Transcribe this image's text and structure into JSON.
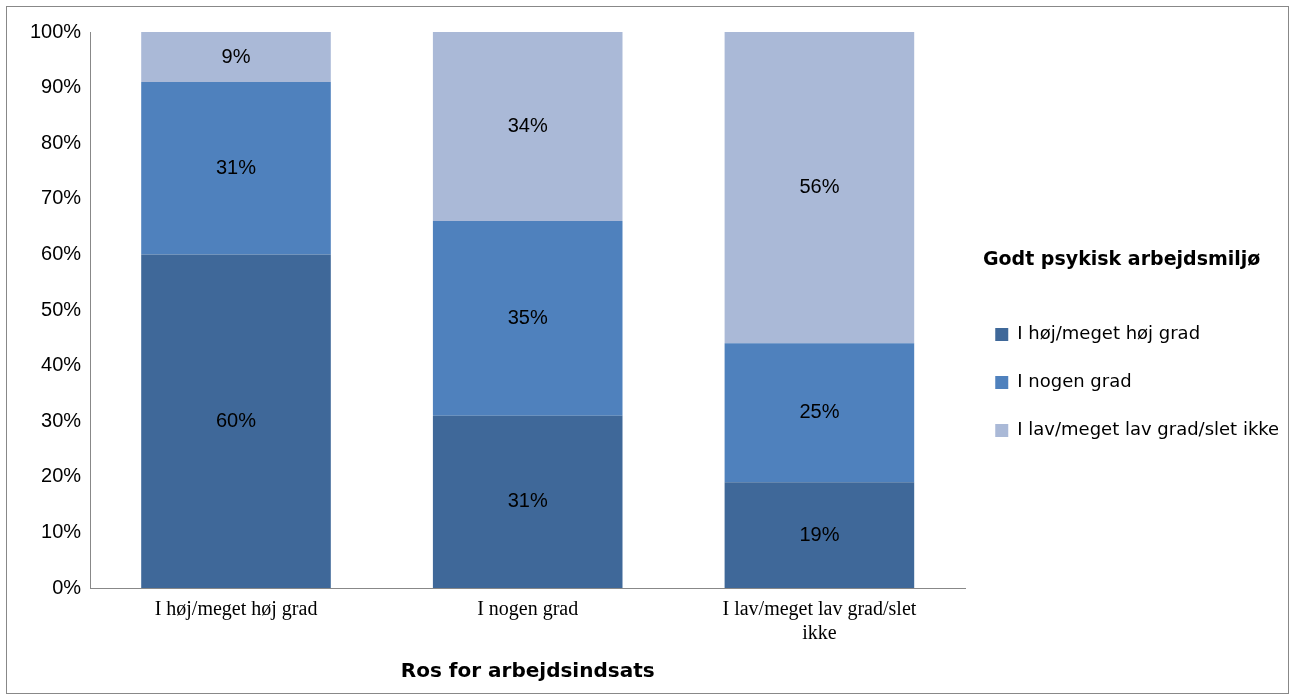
{
  "chart_data": {
    "type": "bar",
    "stacked": true,
    "xlabel": "Ros for arbejdsindsats",
    "legend_title": "Godt psykisk arbejdsmiljø",
    "legend": "right",
    "grid": false,
    "categories": [
      "I høj/meget høj grad",
      "I nogen grad",
      "I lav/meget lav grad/slet ikke"
    ],
    "series": [
      {
        "name": "I høj/meget høj grad",
        "color": "#3f6899",
        "values": [
          60,
          31,
          19
        ],
        "value_labels": [
          "60%",
          "31%",
          "19%"
        ]
      },
      {
        "name": "I nogen grad",
        "color": "#4f81bd",
        "values": [
          31,
          35,
          25
        ],
        "value_labels": [
          "31%",
          "35%",
          "25%"
        ]
      },
      {
        "name": "I lav/meget lav grad/slet ikke",
        "color": "#aab9d7",
        "values": [
          9,
          34,
          56
        ],
        "value_labels": [
          "9%",
          "34%",
          "56%"
        ]
      }
    ],
    "ylim": [
      0,
      100
    ],
    "yticks": [
      {
        "value": 0,
        "label": "0%"
      },
      {
        "value": 10,
        "label": "10%"
      },
      {
        "value": 20,
        "label": "20%"
      },
      {
        "value": 30,
        "label": "30%"
      },
      {
        "value": 40,
        "label": "40%"
      },
      {
        "value": 50,
        "label": "50%"
      },
      {
        "value": 60,
        "label": "60%"
      },
      {
        "value": 70,
        "label": "70%"
      },
      {
        "value": 80,
        "label": "80%"
      },
      {
        "value": 90,
        "label": "90%"
      },
      {
        "value": 100,
        "label": "100%"
      }
    ]
  }
}
